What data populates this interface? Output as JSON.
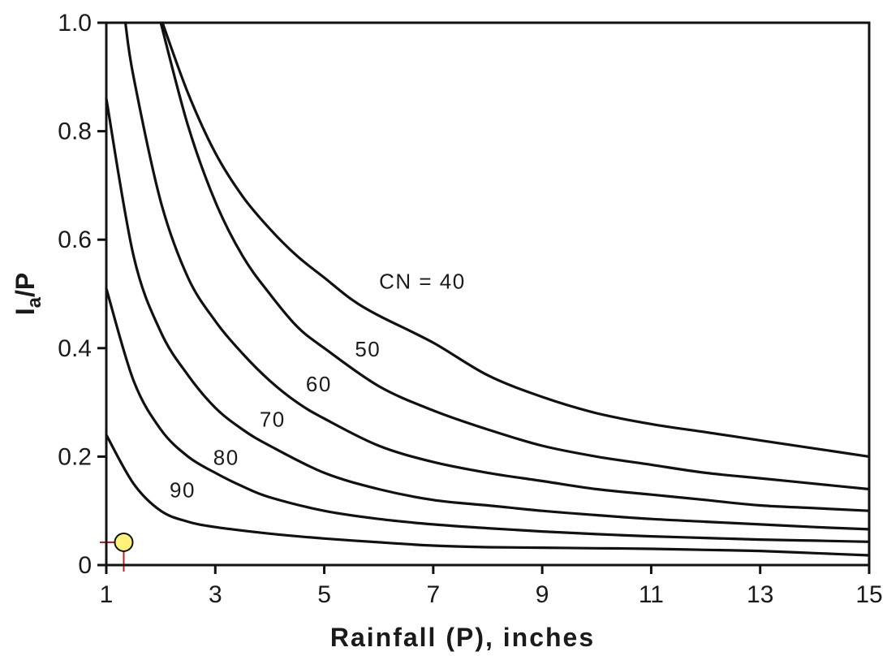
{
  "chart_data": {
    "type": "line",
    "xlabel": "Rainfall (P), inches",
    "ylabel_main": "I",
    "ylabel_sub": "a",
    "ylabel_tail": "/P",
    "xlim": [
      1,
      15
    ],
    "ylim": [
      0,
      1.0
    ],
    "xticks": [
      "1",
      "3",
      "5",
      "7",
      "9",
      "11",
      "13",
      "15"
    ],
    "yticks": [
      "0",
      "0.2",
      "0.4",
      "0.6",
      "0.8",
      "1.0"
    ],
    "grid": false,
    "series": [
      {
        "name": "CN = 40",
        "label": "CN = 40",
        "x": [
          2.03,
          2.5,
          3,
          3.5,
          4,
          4.5,
          5,
          5.5,
          6,
          7,
          8,
          9,
          10,
          11,
          12,
          13,
          14,
          15
        ],
        "y": [
          1.0,
          0.87,
          0.76,
          0.68,
          0.62,
          0.57,
          0.53,
          0.49,
          0.46,
          0.41,
          0.35,
          0.31,
          0.28,
          0.26,
          0.245,
          0.23,
          0.215,
          0.2
        ]
      },
      {
        "name": "50",
        "label": "50",
        "x": [
          2.0,
          2.5,
          3,
          3.5,
          4,
          4.5,
          5,
          6,
          7,
          8,
          9,
          10,
          11,
          12,
          13,
          14,
          15
        ],
        "y": [
          1.0,
          0.81,
          0.67,
          0.57,
          0.5,
          0.44,
          0.4,
          0.33,
          0.285,
          0.25,
          0.22,
          0.2,
          0.185,
          0.17,
          0.16,
          0.15,
          0.14
        ]
      },
      {
        "name": "60",
        "label": "60",
        "x": [
          1.35,
          1.5,
          2,
          2.5,
          3,
          3.5,
          4,
          4.5,
          5,
          6,
          7,
          8,
          9,
          10,
          11,
          12,
          13,
          14,
          15
        ],
        "y": [
          1.0,
          0.9,
          0.67,
          0.53,
          0.45,
          0.39,
          0.34,
          0.3,
          0.27,
          0.22,
          0.19,
          0.17,
          0.155,
          0.14,
          0.13,
          0.12,
          0.11,
          0.105,
          0.1
        ]
      },
      {
        "name": "70",
        "label": "70",
        "x": [
          1,
          1.5,
          2,
          2.5,
          3,
          3.5,
          4,
          5,
          6,
          7,
          8,
          9,
          10,
          11,
          12,
          13,
          14,
          15
        ],
        "y": [
          0.86,
          0.57,
          0.43,
          0.35,
          0.29,
          0.25,
          0.22,
          0.17,
          0.14,
          0.12,
          0.11,
          0.1,
          0.092,
          0.085,
          0.08,
          0.075,
          0.07,
          0.066
        ]
      },
      {
        "name": "80",
        "label": "80",
        "x": [
          1,
          1.5,
          2,
          2.5,
          3,
          3.5,
          4,
          5,
          6,
          7,
          8,
          9,
          10,
          11,
          12,
          13,
          14,
          15
        ],
        "y": [
          0.51,
          0.34,
          0.25,
          0.2,
          0.17,
          0.145,
          0.125,
          0.1,
          0.085,
          0.075,
          0.068,
          0.062,
          0.057,
          0.053,
          0.05,
          0.047,
          0.045,
          0.043
        ]
      },
      {
        "name": "90",
        "label": "90",
        "x": [
          1,
          1.5,
          2,
          2.5,
          3,
          4,
          5,
          6,
          7,
          8,
          9,
          10,
          11,
          12,
          13,
          14,
          15
        ],
        "y": [
          0.24,
          0.15,
          0.1,
          0.08,
          0.07,
          0.058,
          0.049,
          0.042,
          0.036,
          0.033,
          0.032,
          0.031,
          0.03,
          0.028,
          0.026,
          0.022,
          0.018
        ]
      }
    ],
    "curve_labels": [
      {
        "text": "CN = 40",
        "x": 6.8,
        "y": 0.51
      },
      {
        "text": "50",
        "x": 5.8,
        "y": 0.385
      },
      {
        "text": "60",
        "x": 4.9,
        "y": 0.32
      },
      {
        "text": "70",
        "x": 4.05,
        "y": 0.255
      },
      {
        "text": "80",
        "x": 3.2,
        "y": 0.185
      },
      {
        "text": "90",
        "x": 2.4,
        "y": 0.125
      }
    ],
    "marker": {
      "x": 1.32,
      "y": 0.042,
      "fill": "#fff27a",
      "crosshair_color": "#d41818"
    }
  }
}
